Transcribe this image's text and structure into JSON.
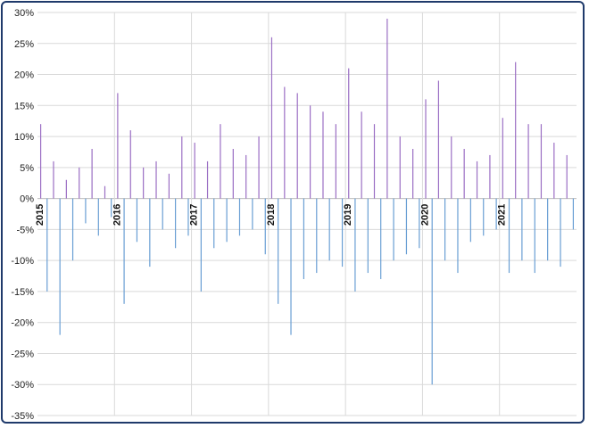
{
  "chart_data": {
    "type": "bar",
    "title": "",
    "xlabel": "",
    "ylabel": "",
    "ylim": [
      -0.35,
      0.3
    ],
    "y_ticks": [
      0.3,
      0.25,
      0.2,
      0.15,
      0.1,
      0.05,
      0.0,
      -0.05,
      -0.1,
      -0.15,
      -0.2,
      -0.25,
      -0.3,
      -0.35
    ],
    "y_tick_labels": [
      "30%",
      "25%",
      "20%",
      "15%",
      "10%",
      "5%",
      "0%",
      "-5%",
      "-10%",
      "-15%",
      "-20%",
      "-25%",
      "-30%",
      "-35%"
    ],
    "x_tick_labels": [
      "2015",
      "2016",
      "2017",
      "2018",
      "2019",
      "2020",
      "2021"
    ],
    "grid": true,
    "legend": "none",
    "colors": {
      "positive": "#9b6fc4",
      "negative": "#6a9fd4",
      "grid": "#d9d9d9",
      "frame": "#1f3a6b"
    },
    "series": [
      {
        "values_by_year": [
          {
            "year": "2015",
            "values": [
              0.12,
              -0.15,
              0.06,
              -0.22,
              0.03,
              -0.1,
              0.05,
              -0.04,
              0.08,
              -0.06,
              0.02,
              -0.03
            ]
          },
          {
            "year": "2016",
            "values": [
              0.17,
              -0.17,
              0.11,
              -0.07,
              0.05,
              -0.11,
              0.06,
              -0.05,
              0.04,
              -0.08,
              0.1,
              -0.06
            ]
          },
          {
            "year": "2017",
            "values": [
              0.09,
              -0.15,
              0.06,
              -0.08,
              0.12,
              -0.07,
              0.08,
              -0.06,
              0.07,
              -0.05,
              0.1,
              -0.09
            ]
          },
          {
            "year": "2018",
            "values": [
              0.26,
              -0.17,
              0.18,
              -0.22,
              0.17,
              -0.13,
              0.15,
              -0.12,
              0.14,
              -0.1,
              0.12,
              -0.11
            ]
          },
          {
            "year": "2019",
            "values": [
              0.21,
              -0.15,
              0.14,
              -0.12,
              0.12,
              -0.13,
              0.29,
              -0.1,
              0.1,
              -0.09,
              0.08,
              -0.08
            ]
          },
          {
            "year": "2020",
            "values": [
              0.16,
              -0.3,
              0.19,
              -0.1,
              0.1,
              -0.12,
              0.08,
              -0.07,
              0.06,
              -0.06,
              0.07,
              -0.05
            ]
          },
          {
            "year": "2021",
            "values": [
              0.13,
              -0.12,
              0.22,
              -0.1,
              0.12,
              -0.12,
              0.12,
              -0.1,
              0.09,
              -0.11,
              0.07,
              -0.05
            ]
          }
        ]
      }
    ]
  }
}
